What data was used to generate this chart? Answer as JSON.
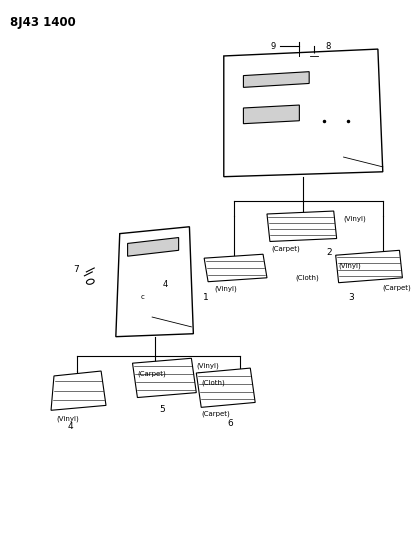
{
  "title": "8J43 1400",
  "bg": "#ffffff",
  "lc": "#000000",
  "figsize": [
    4.16,
    5.33
  ],
  "dpi": 100,
  "labels": {
    "vinyl": "(Vinyl)",
    "carpet": "(Carpet)",
    "cloth": "(Cloth)"
  }
}
